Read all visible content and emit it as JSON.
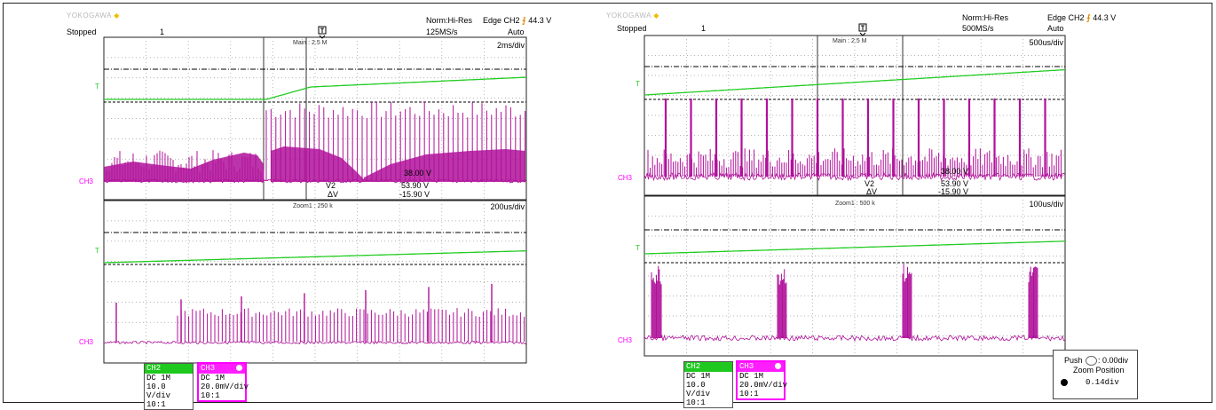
{
  "panels": [
    {
      "brand": "YOKOGAWA",
      "status": "Stopped",
      "acq_count": "1",
      "acq_mode": "Norm:Hi-Res",
      "sample_rate": "125MS/s",
      "trigger": "Edge CH2",
      "trigger_level": "44.3 V",
      "trigger_mode": "Auto",
      "main_label": "Main : 2.5 M",
      "main_timebase": "2ms/div",
      "zoom_label": "Zoom1 : 250 k",
      "zoom_timebase": "200us/div",
      "cursor_v1": "38.00 V",
      "cursor_v2": "53.90 V",
      "cursor_dv": "-15.90 V",
      "cursor_v2_label": "V2",
      "cursor_dv_label": "ΔV",
      "ch2_marker": "T",
      "ch3_marker": "CH3",
      "ch2": {
        "name": "CH2",
        "coupling": "DC 1M",
        "scale": "10.0 V/div",
        "probe": "10:1"
      },
      "ch3": {
        "name": "CH3",
        "coupling": "DC 1M",
        "scale": "20.0mV/div",
        "probe": "10:1"
      }
    },
    {
      "brand": "YOKOGAWA",
      "status": "Stopped",
      "acq_count": "1",
      "acq_mode": "Norm:Hi-Res",
      "sample_rate": "500MS/s",
      "trigger": "Edge CH2",
      "trigger_level": "44.3 V",
      "trigger_mode": "Auto",
      "main_label": "Main : 2.5 M",
      "main_timebase": "500us/div",
      "zoom_label": "Zoom1 : 500 k",
      "zoom_timebase": "100us/div",
      "cursor_v1": "38.00 V",
      "cursor_v2": "53.90 V",
      "cursor_dv": "-15.90 V",
      "cursor_v2_label": "V2",
      "cursor_dv_label": "ΔV",
      "ch2_marker": "T",
      "ch3_marker": "CH3",
      "ch2": {
        "name": "CH2",
        "coupling": "DC 1M",
        "scale": "10.0 V/div",
        "probe": "10:1"
      },
      "ch3": {
        "name": "CH3",
        "coupling": "DC 1M",
        "scale": "20.0mV/div",
        "probe": "10:1"
      }
    }
  ],
  "zoom_position": {
    "push_label": "Push",
    "push_value": ": 0.00div",
    "title": "Zoom Position",
    "value": "0.14div"
  },
  "colors": {
    "ch2": "#22cc22",
    "ch3": "#b0109a",
    "ch3_label": "#ff00ff",
    "grid": "#9a9a9a",
    "cursor": "#000000"
  },
  "chart_data": [
    {
      "type": "line",
      "title": "",
      "series": [
        {
          "name": "CH2",
          "scale": "10.0 V/div"
        },
        {
          "name": "CH3",
          "scale": "20.0mV/div"
        }
      ],
      "main_timebase": "2ms/div",
      "zoom_timebase": "200us/div",
      "grid": true,
      "cursors": {
        "V1": "38.00 V",
        "V2": "53.90 V",
        "dV": "-15.90 V"
      }
    },
    {
      "type": "line",
      "title": "",
      "series": [
        {
          "name": "CH2",
          "scale": "10.0 V/div"
        },
        {
          "name": "CH3",
          "scale": "20.0mV/div"
        }
      ],
      "main_timebase": "500us/div",
      "zoom_timebase": "100us/div",
      "grid": true,
      "cursors": {
        "V1": "38.00 V",
        "V2": "53.90 V",
        "dV": "-15.90 V"
      }
    }
  ]
}
